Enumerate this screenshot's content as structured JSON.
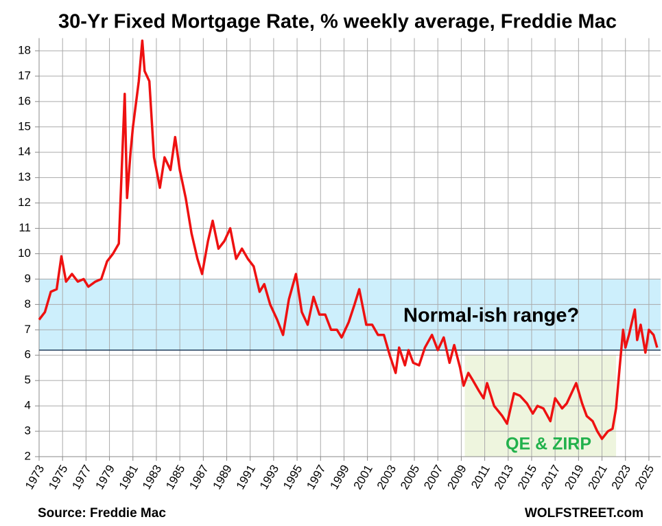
{
  "chart_data": {
    "type": "line",
    "title": "30-Yr Fixed Mortgage Rate, % weekly average, Freddie Mac",
    "source": "Source: Freddie Mac",
    "credit": "WOLFSTREET.com",
    "band_label": "Normal-ish range?",
    "shaded_label": "QE & ZIRP",
    "band": {
      "ylim": [
        6.2,
        9
      ],
      "color": "#cdeffc"
    },
    "shaded": {
      "xlim": [
        2009.3,
        2022.2
      ],
      "ylim": [
        2,
        6
      ],
      "color": "#eef5de"
    },
    "hline": 6.2,
    "xlim": [
      1973,
      2026
    ],
    "xticks": [
      1973,
      1975,
      1977,
      1979,
      1981,
      1983,
      1985,
      1987,
      1989,
      1991,
      1993,
      1995,
      1997,
      1999,
      2001,
      2003,
      2005,
      2007,
      2009,
      2011,
      2013,
      2015,
      2017,
      2019,
      2021,
      2023,
      2025
    ],
    "ylim": [
      2,
      18.5
    ],
    "yticks": [
      2,
      3,
      4,
      5,
      6,
      7,
      8,
      9,
      10,
      11,
      12,
      13,
      14,
      15,
      16,
      17,
      18
    ],
    "grid": true,
    "x": [
      1973.0,
      1973.5,
      1974.0,
      1974.5,
      1974.9,
      1975.3,
      1975.8,
      1976.3,
      1976.8,
      1977.2,
      1977.8,
      1978.3,
      1978.8,
      1979.3,
      1979.8,
      1980.0,
      1980.3,
      1980.5,
      1980.8,
      1981.0,
      1981.5,
      1981.8,
      1982.0,
      1982.4,
      1982.8,
      1983.3,
      1983.7,
      1984.2,
      1984.6,
      1985.0,
      1985.5,
      1986.0,
      1986.5,
      1986.9,
      1987.4,
      1987.8,
      1988.3,
      1988.8,
      1989.3,
      1989.8,
      1990.3,
      1990.8,
      1991.3,
      1991.8,
      1992.2,
      1992.7,
      1993.3,
      1993.8,
      1994.3,
      1994.9,
      1995.4,
      1995.9,
      1996.4,
      1996.9,
      1997.4,
      1997.9,
      1998.4,
      1998.8,
      1999.4,
      1999.9,
      2000.3,
      2000.9,
      2001.4,
      2001.9,
      2002.4,
      2002.9,
      2003.4,
      2003.7,
      2004.2,
      2004.5,
      2004.9,
      2005.4,
      2005.9,
      2006.5,
      2007.0,
      2007.5,
      2008.0,
      2008.4,
      2008.9,
      2009.2,
      2009.6,
      2010.0,
      2010.5,
      2010.9,
      2011.2,
      2011.8,
      2012.5,
      2012.9,
      2013.5,
      2014.0,
      2014.6,
      2015.1,
      2015.5,
      2016.0,
      2016.6,
      2017.0,
      2017.6,
      2018.0,
      2018.8,
      2019.3,
      2019.7,
      2020.2,
      2020.6,
      2021.0,
      2021.5,
      2021.9,
      2022.2,
      2022.5,
      2022.8,
      2023.0,
      2023.3,
      2023.8,
      2024.0,
      2024.3,
      2024.7,
      2025.0,
      2025.4,
      2025.7
    ],
    "series": [
      {
        "name": "30-Yr Fixed Mortgage Rate",
        "color": "#ee1111",
        "values": [
          7.4,
          7.7,
          8.5,
          8.6,
          9.9,
          8.9,
          9.2,
          8.9,
          9.0,
          8.7,
          8.9,
          9.0,
          9.7,
          10.0,
          10.4,
          12.8,
          16.3,
          12.2,
          14.0,
          15.0,
          16.8,
          18.4,
          17.2,
          16.8,
          13.8,
          12.6,
          13.8,
          13.3,
          14.6,
          13.3,
          12.2,
          10.8,
          9.8,
          9.2,
          10.5,
          11.3,
          10.2,
          10.5,
          11.0,
          9.8,
          10.2,
          9.8,
          9.5,
          8.5,
          8.8,
          8.0,
          7.4,
          6.8,
          8.2,
          9.2,
          7.7,
          7.2,
          8.3,
          7.6,
          7.6,
          7.0,
          7.0,
          6.7,
          7.3,
          8.0,
          8.6,
          7.2,
          7.2,
          6.8,
          6.8,
          6.0,
          5.3,
          6.3,
          5.6,
          6.2,
          5.7,
          5.6,
          6.3,
          6.8,
          6.2,
          6.7,
          5.7,
          6.4,
          5.5,
          4.8,
          5.3,
          5.0,
          4.6,
          4.3,
          4.9,
          4.0,
          3.6,
          3.3,
          4.5,
          4.4,
          4.1,
          3.7,
          4.0,
          3.9,
          3.4,
          4.3,
          3.9,
          4.1,
          4.9,
          4.1,
          3.6,
          3.4,
          3.0,
          2.7,
          3.0,
          3.1,
          3.9,
          5.5,
          7.0,
          6.3,
          6.8,
          7.8,
          6.6,
          7.2,
          6.1,
          7.0,
          6.8,
          6.3
        ]
      }
    ]
  }
}
